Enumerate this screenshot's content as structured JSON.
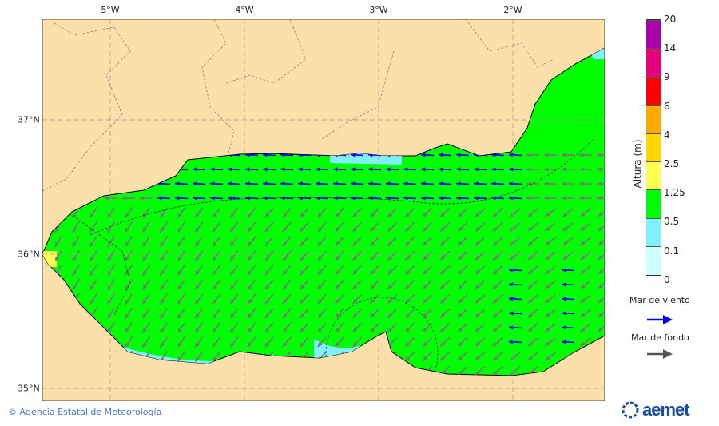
{
  "map": {
    "longitude_labels": [
      "5°W",
      "4°W",
      "3°W",
      "2°W"
    ],
    "latitude_labels": [
      "37°N",
      "36°N",
      "35°N"
    ],
    "colors": {
      "land": "#fde0a9",
      "sea_0_5_1_25": "#00ff00",
      "sea_0_1_0_5": "#80f0ff",
      "sea_1_25_2_5": "#ffff50",
      "wind_sea_arrow": "#0000ee",
      "swell_arrow": "#666666"
    }
  },
  "colorbar": {
    "title": "Altura (m)",
    "ticks": [
      "20",
      "14",
      "9",
      "6",
      "4",
      "2.5",
      "1.25",
      "0.5",
      "0.1",
      "0"
    ],
    "colors": [
      "#aa00aa",
      "#e8007a",
      "#ff0000",
      "#ffaa00",
      "#ffd700",
      "#ffff50",
      "#00ff00",
      "#80f0ff",
      "#ccffff"
    ]
  },
  "legend": {
    "wind_sea": "Mar de viento",
    "swell": "Mar de fondo"
  },
  "footer": {
    "copyright": "© Agencia Estatal de Meteorología",
    "logo_text": "aemet"
  }
}
